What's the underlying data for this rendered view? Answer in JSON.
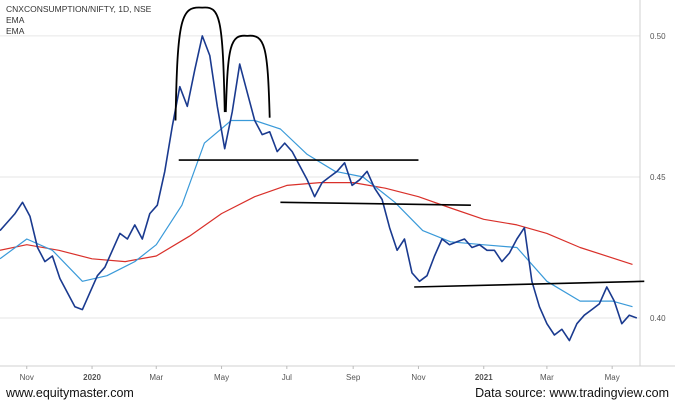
{
  "legend": {
    "title": "CNXCONSUMPTION/NIFTY, 1D, NSE",
    "ema1": "EMA",
    "ema2": "EMA"
  },
  "footer": {
    "left": "www.equitymaster.com",
    "right": "Data source: www.tradingview.com"
  },
  "colors": {
    "price": "#1a3a8f",
    "ema_short": "#3a9ad9",
    "ema_long": "#d9302a",
    "annotation": "#000000",
    "grid": "#e6e6e6",
    "axis_text": "#555555"
  },
  "chart_data": {
    "type": "line",
    "xlabel": "",
    "ylabel": "",
    "x_range": [
      "2019-10-07",
      "2021-05-27"
    ],
    "ylim": [
      0.383,
      0.512
    ],
    "y_ticks": [
      0.4,
      0.45,
      0.5
    ],
    "y_tick_labels": [
      "0.40",
      "0.45",
      "0.50"
    ],
    "x_ticks": [
      {
        "date": "2019-11-01",
        "label": "Nov"
      },
      {
        "date": "2020-01-01",
        "label": "2020"
      },
      {
        "date": "2020-03-01",
        "label": "Mar"
      },
      {
        "date": "2020-05-01",
        "label": "May"
      },
      {
        "date": "2020-07-01",
        "label": "Jul"
      },
      {
        "date": "2020-09-01",
        "label": "Sep"
      },
      {
        "date": "2020-11-01",
        "label": "Nov"
      },
      {
        "date": "2021-01-01",
        "label": "2021"
      },
      {
        "date": "2021-03-01",
        "label": "Mar"
      },
      {
        "date": "2021-05-01",
        "label": "May"
      }
    ],
    "grid": "horizontal",
    "series": [
      {
        "key": "price",
        "points": [
          [
            "2019-10-07",
            0.431
          ],
          [
            "2019-10-14",
            0.434
          ],
          [
            "2019-10-21",
            0.437
          ],
          [
            "2019-10-28",
            0.441
          ],
          [
            "2019-11-04",
            0.436
          ],
          [
            "2019-11-11",
            0.425
          ],
          [
            "2019-11-18",
            0.42
          ],
          [
            "2019-11-25",
            0.422
          ],
          [
            "2019-12-02",
            0.414
          ],
          [
            "2019-12-09",
            0.409
          ],
          [
            "2019-12-16",
            0.404
          ],
          [
            "2019-12-23",
            0.403
          ],
          [
            "2019-12-30",
            0.409
          ],
          [
            "2020-01-06",
            0.415
          ],
          [
            "2020-01-13",
            0.418
          ],
          [
            "2020-01-20",
            0.424
          ],
          [
            "2020-01-27",
            0.43
          ],
          [
            "2020-02-03",
            0.428
          ],
          [
            "2020-02-10",
            0.433
          ],
          [
            "2020-02-17",
            0.428
          ],
          [
            "2020-02-24",
            0.437
          ],
          [
            "2020-03-02",
            0.44
          ],
          [
            "2020-03-09",
            0.452
          ],
          [
            "2020-03-16",
            0.468
          ],
          [
            "2020-03-23",
            0.482
          ],
          [
            "2020-03-30",
            0.475
          ],
          [
            "2020-04-06",
            0.488
          ],
          [
            "2020-04-13",
            0.5
          ],
          [
            "2020-04-20",
            0.493
          ],
          [
            "2020-04-27",
            0.475
          ],
          [
            "2020-05-04",
            0.46
          ],
          [
            "2020-05-11",
            0.473
          ],
          [
            "2020-05-18",
            0.49
          ],
          [
            "2020-05-25",
            0.48
          ],
          [
            "2020-06-01",
            0.47
          ],
          [
            "2020-06-08",
            0.465
          ],
          [
            "2020-06-15",
            0.466
          ],
          [
            "2020-06-22",
            0.459
          ],
          [
            "2020-06-29",
            0.462
          ],
          [
            "2020-07-06",
            0.459
          ],
          [
            "2020-07-13",
            0.454
          ],
          [
            "2020-07-20",
            0.449
          ],
          [
            "2020-07-27",
            0.443
          ],
          [
            "2020-08-03",
            0.448
          ],
          [
            "2020-08-10",
            0.45
          ],
          [
            "2020-08-17",
            0.452
          ],
          [
            "2020-08-24",
            0.455
          ],
          [
            "2020-08-31",
            0.447
          ],
          [
            "2020-09-07",
            0.449
          ],
          [
            "2020-09-14",
            0.452
          ],
          [
            "2020-09-21",
            0.446
          ],
          [
            "2020-09-28",
            0.442
          ],
          [
            "2020-10-05",
            0.432
          ],
          [
            "2020-10-12",
            0.424
          ],
          [
            "2020-10-19",
            0.428
          ],
          [
            "2020-10-26",
            0.416
          ],
          [
            "2020-11-02",
            0.413
          ],
          [
            "2020-11-09",
            0.415
          ],
          [
            "2020-11-16",
            0.422
          ],
          [
            "2020-11-23",
            0.428
          ],
          [
            "2020-11-30",
            0.426
          ],
          [
            "2020-12-07",
            0.427
          ],
          [
            "2020-12-14",
            0.428
          ],
          [
            "2020-12-21",
            0.425
          ],
          [
            "2020-12-28",
            0.426
          ],
          [
            "2021-01-04",
            0.424
          ],
          [
            "2021-01-11",
            0.424
          ],
          [
            "2021-01-18",
            0.42
          ],
          [
            "2021-01-25",
            0.423
          ],
          [
            "2021-02-01",
            0.428
          ],
          [
            "2021-02-08",
            0.432
          ],
          [
            "2021-02-15",
            0.413
          ],
          [
            "2021-02-22",
            0.404
          ],
          [
            "2021-03-01",
            0.398
          ],
          [
            "2021-03-08",
            0.394
          ],
          [
            "2021-03-15",
            0.396
          ],
          [
            "2021-03-22",
            0.392
          ],
          [
            "2021-03-29",
            0.398
          ],
          [
            "2021-04-05",
            0.401
          ],
          [
            "2021-04-12",
            0.403
          ],
          [
            "2021-04-19",
            0.405
          ],
          [
            "2021-04-26",
            0.411
          ],
          [
            "2021-05-03",
            0.406
          ],
          [
            "2021-05-10",
            0.398
          ],
          [
            "2021-05-17",
            0.401
          ],
          [
            "2021-05-24",
            0.4
          ]
        ]
      },
      {
        "key": "ema_short",
        "points": [
          [
            "2019-10-07",
            0.421
          ],
          [
            "2019-11-01",
            0.428
          ],
          [
            "2019-11-25",
            0.424
          ],
          [
            "2019-12-23",
            0.413
          ],
          [
            "2020-01-15",
            0.415
          ],
          [
            "2020-02-10",
            0.42
          ],
          [
            "2020-03-01",
            0.426
          ],
          [
            "2020-03-25",
            0.44
          ],
          [
            "2020-04-15",
            0.462
          ],
          [
            "2020-05-10",
            0.47
          ],
          [
            "2020-06-01",
            0.47
          ],
          [
            "2020-06-25",
            0.467
          ],
          [
            "2020-07-20",
            0.458
          ],
          [
            "2020-08-15",
            0.452
          ],
          [
            "2020-09-10",
            0.45
          ],
          [
            "2020-10-10",
            0.441
          ],
          [
            "2020-11-05",
            0.431
          ],
          [
            "2020-12-01",
            0.427
          ],
          [
            "2020-12-31",
            0.426
          ],
          [
            "2021-02-01",
            0.425
          ],
          [
            "2021-03-01",
            0.413
          ],
          [
            "2021-04-01",
            0.406
          ],
          [
            "2021-05-01",
            0.406
          ],
          [
            "2021-05-20",
            0.404
          ]
        ]
      },
      {
        "key": "ema_long",
        "points": [
          [
            "2019-10-07",
            0.424
          ],
          [
            "2019-11-01",
            0.426
          ],
          [
            "2019-12-01",
            0.424
          ],
          [
            "2020-01-01",
            0.421
          ],
          [
            "2020-02-01",
            0.42
          ],
          [
            "2020-03-01",
            0.422
          ],
          [
            "2020-04-01",
            0.429
          ],
          [
            "2020-05-01",
            0.437
          ],
          [
            "2020-06-01",
            0.443
          ],
          [
            "2020-07-01",
            0.447
          ],
          [
            "2020-08-01",
            0.448
          ],
          [
            "2020-09-01",
            0.448
          ],
          [
            "2020-10-01",
            0.446
          ],
          [
            "2020-11-01",
            0.443
          ],
          [
            "2020-12-01",
            0.439
          ],
          [
            "2021-01-01",
            0.435
          ],
          [
            "2021-02-01",
            0.433
          ],
          [
            "2021-03-01",
            0.43
          ],
          [
            "2021-04-01",
            0.425
          ],
          [
            "2021-05-20",
            0.419
          ]
        ]
      }
    ],
    "annotations": {
      "trendlines": [
        {
          "from": [
            "2020-03-22",
            0.456
          ],
          "to": [
            "2020-11-01",
            0.456
          ]
        },
        {
          "from": [
            "2020-06-25",
            0.441
          ],
          "to": [
            "2020-12-20",
            0.44
          ]
        },
        {
          "from": [
            "2020-10-28",
            0.411
          ],
          "to": [
            "2021-05-31",
            0.413
          ]
        }
      ],
      "arcs": [
        {
          "from": [
            "2020-03-19",
            0.47
          ],
          "peak": [
            "2020-04-13",
            0.51
          ],
          "to": [
            "2020-05-04",
            0.473
          ]
        },
        {
          "from": [
            "2020-05-05",
            0.473
          ],
          "peak": [
            "2020-05-25",
            0.5
          ],
          "to": [
            "2020-06-15",
            0.471
          ]
        }
      ]
    }
  }
}
